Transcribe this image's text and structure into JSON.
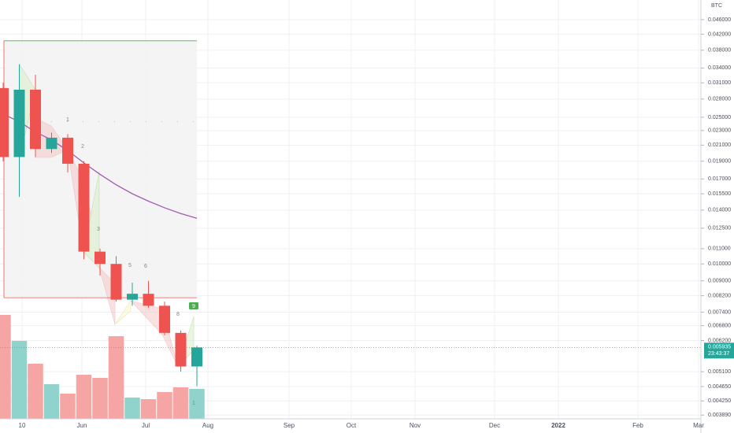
{
  "chart_data": {
    "type": "candlestick",
    "log_scale": true,
    "grid": true,
    "currency": "BTC",
    "categories": [
      null,
      null,
      null,
      null,
      null,
      null,
      null,
      null,
      null,
      null,
      null,
      null,
      null
    ],
    "open": [
      0.03,
      0.0195,
      0.0297,
      0.0205,
      0.022,
      0.0187,
      0.0108,
      0.01,
      0.008,
      0.0083,
      0.0077,
      0.0065,
      0.00527
    ],
    "high": [
      0.031,
      0.0348,
      0.0326,
      0.0227,
      0.0225,
      0.019,
      0.011,
      0.0105,
      0.0089,
      0.009,
      0.0079,
      0.0066,
      0.006
    ],
    "low": [
      0.019,
      0.0152,
      0.0195,
      0.02,
      0.0177,
      0.0103,
      0.0093,
      0.0079,
      0.0077,
      0.0076,
      0.0064,
      0.0051,
      0.00466
    ],
    "close": [
      0.0195,
      0.0297,
      0.0205,
      0.022,
      0.0187,
      0.0108,
      0.01,
      0.008,
      0.0083,
      0.0077,
      0.0065,
      0.00527,
      0.005935
    ],
    "up_color": "#26a69a",
    "down_color": "#ef5350",
    "volume": [
      132,
      99,
      70,
      44,
      32,
      56,
      52,
      105,
      27,
      25,
      34,
      40,
      38
    ],
    "volume_up_color": "#8fd3cc",
    "volume_down_color": "#f5a5a3",
    "moving_average": {
      "color": "#a05db0",
      "values": [
        0.0255,
        0.0243,
        0.0228,
        0.0217,
        0.0203,
        0.0188,
        0.0175,
        0.0164,
        0.0155,
        0.0148,
        0.0142,
        0.0137,
        0.0133
      ]
    },
    "range_box": {
      "top": 0.0403,
      "bottom": 0.0081,
      "level": 0.0243
    },
    "ylim": [
      0.0038,
      0.052
    ],
    "yticks": [
      {
        "value": 0.046,
        "label": "0.046000"
      },
      {
        "value": 0.042,
        "label": "0.042000"
      },
      {
        "value": 0.038,
        "label": "0.038000"
      },
      {
        "value": 0.034,
        "label": "0.034000"
      },
      {
        "value": 0.031,
        "label": "0.031000"
      },
      {
        "value": 0.028,
        "label": "0.028000"
      },
      {
        "value": 0.025,
        "label": "0.025000"
      },
      {
        "value": 0.023,
        "label": "0.023000"
      },
      {
        "value": 0.021,
        "label": "0.021000"
      },
      {
        "value": 0.019,
        "label": "0.019000"
      },
      {
        "value": 0.017,
        "label": "0.017000"
      },
      {
        "value": 0.0155,
        "label": "0.015500"
      },
      {
        "value": 0.014,
        "label": "0.014000"
      },
      {
        "value": 0.0125,
        "label": "0.012500"
      },
      {
        "value": 0.011,
        "label": "0.011000"
      },
      {
        "value": 0.01,
        "label": "0.010000"
      },
      {
        "value": 0.009,
        "label": "0.009000"
      },
      {
        "value": 0.0082,
        "label": "0.008200"
      },
      {
        "value": 0.0074,
        "label": "0.007400"
      },
      {
        "value": 0.0068,
        "label": "0.006800"
      },
      {
        "value": 0.0062,
        "label": "0.006200"
      },
      {
        "value": 0.0051,
        "label": "0.005100"
      },
      {
        "value": 0.00465,
        "label": "0.004650"
      },
      {
        "value": 0.00425,
        "label": "0.004250"
      },
      {
        "value": 0.00389,
        "label": "0.003890"
      }
    ],
    "last_price": {
      "value": 0.005935,
      "label": "0.005935",
      "countdown": "23:43:37"
    },
    "x_labels": [
      "10",
      "Jun",
      "Jul",
      "Aug",
      "Sep",
      "Oct",
      "Nov",
      "Dec",
      "2022",
      "Feb",
      "Mar"
    ],
    "annotations": [
      "1",
      "2",
      "3",
      "5",
      "6",
      "8",
      "9",
      "1"
    ]
  }
}
